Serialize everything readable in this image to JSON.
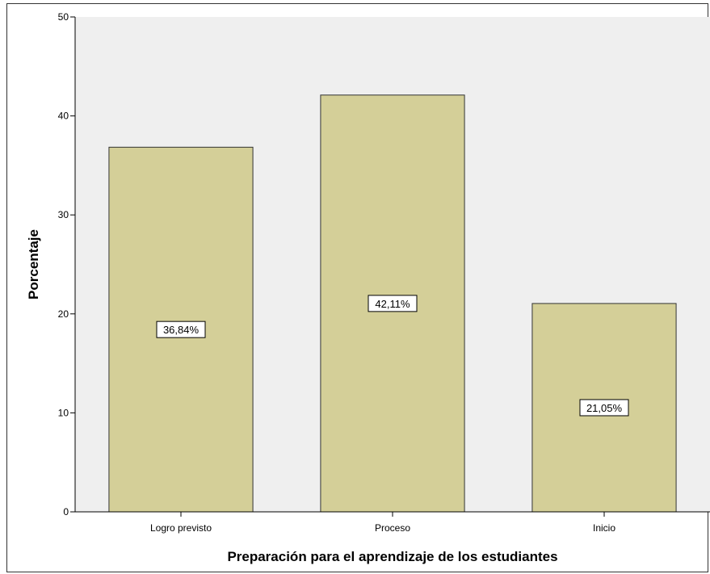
{
  "chart_data": {
    "type": "bar",
    "categories": [
      "Logro previsto",
      "Proceso",
      "Inicio"
    ],
    "values": [
      36.84,
      42.11,
      21.05
    ],
    "data_labels": [
      "36,84%",
      "42,11%",
      "21,05%"
    ],
    "title": "",
    "xlabel": "Preparación para el aprendizaje de los estudiantes",
    "ylabel": "Porcentaje",
    "ylim": [
      0,
      50
    ],
    "yticks": [
      "0",
      "10",
      "20",
      "30",
      "40",
      "50"
    ],
    "grid": false,
    "colors": {
      "bar_fill": "#d4cf98",
      "bar_stroke": "#333333",
      "plot_bg": "#efefef"
    }
  }
}
